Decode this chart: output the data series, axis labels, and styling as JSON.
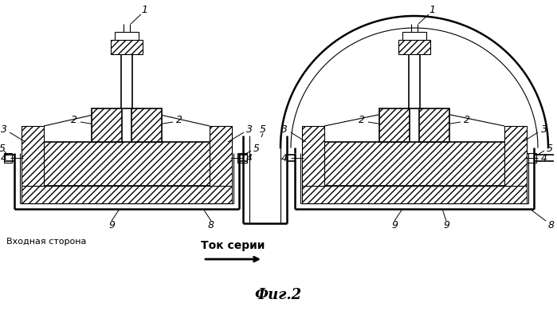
{
  "title": "Фиг.2",
  "label_tok": "Ток серии",
  "label_vkhod": "Входная сторона",
  "bg_color": "#ffffff",
  "fig_width": 6.99,
  "fig_height": 4.0,
  "dpi": 100
}
